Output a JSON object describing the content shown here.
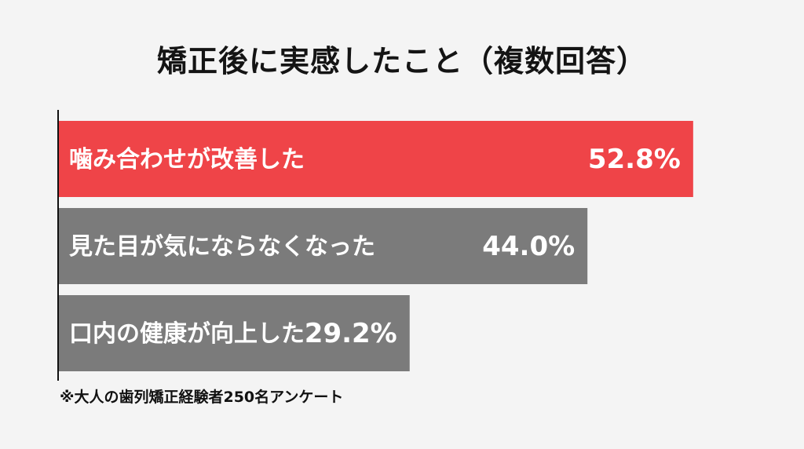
{
  "chart_data": {
    "type": "bar",
    "orientation": "horizontal",
    "title": "矯正後に実感したこと（複数回答）",
    "categories": [
      "噛み合わせが改善した",
      "見た目が気にならなくなった",
      "口内の健康が向上した"
    ],
    "values": [
      52.8,
      44.0,
      29.2
    ],
    "value_labels": [
      "52.8%",
      "44.0%",
      "29.2%"
    ],
    "unit": "%",
    "colors": [
      "#ef4448",
      "#7b7b7b",
      "#7b7b7b"
    ],
    "grid": false,
    "legend": false
  },
  "footnote": "※大人の歯列矯正経験者250名アンケート"
}
